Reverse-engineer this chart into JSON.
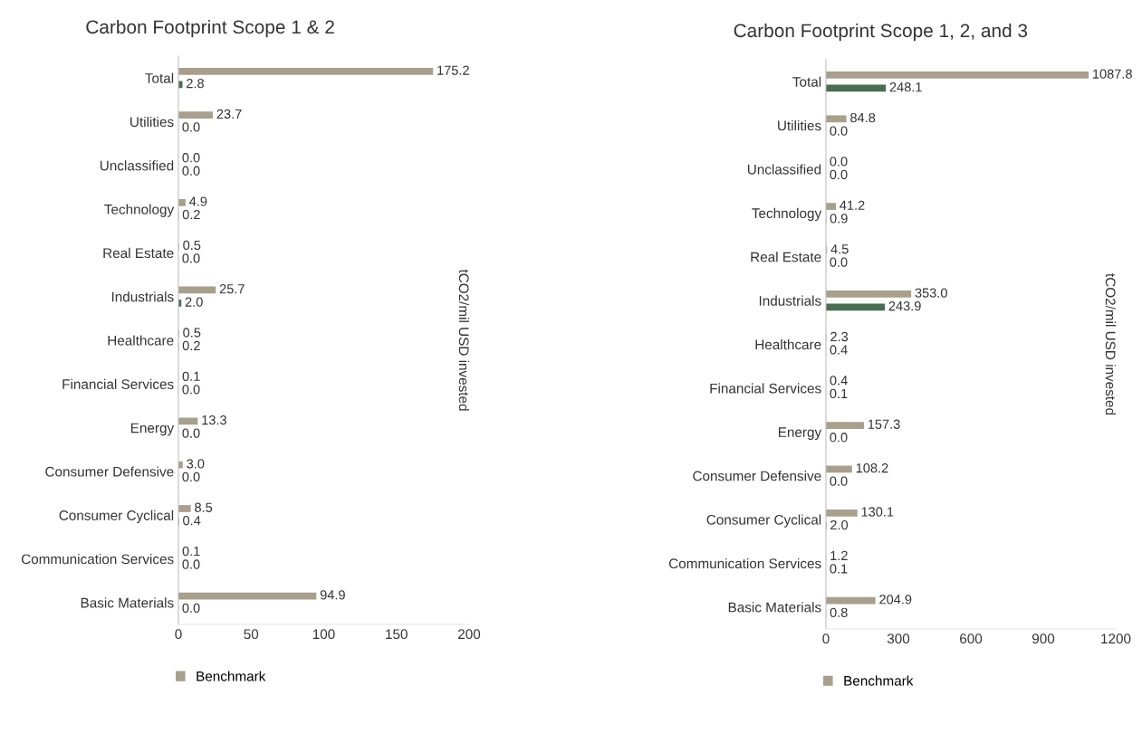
{
  "chart_data": [
    {
      "type": "bar",
      "orientation": "horizontal",
      "title": "Carbon Footprint Scope 1 & 2",
      "categories": [
        "Total",
        "Utilities",
        "Unclassified",
        "Technology",
        "Real Estate",
        "Industrials",
        "Healthcare",
        "Financial Services",
        "Energy",
        "Consumer Defensive",
        "Consumer Cyclical",
        "Communication Services",
        "Basic Materials"
      ],
      "series": [
        {
          "name": "Benchmark",
          "color": "#a89f8c",
          "values": [
            175.2,
            23.7,
            0.0,
            4.9,
            0.5,
            25.7,
            0.5,
            0.1,
            13.3,
            3.0,
            8.5,
            0.1,
            94.9
          ],
          "value_labels": [
            "175.2",
            "23.7",
            "0.0",
            "4.9",
            "0.5",
            "25.7",
            "0.5",
            "0.1",
            "13.3",
            "3.0",
            "8.5",
            "0.1",
            "94.9"
          ]
        },
        {
          "color": "#4a6e52",
          "values": [
            2.8,
            0.0,
            0.0,
            0.2,
            0.0,
            2.0,
            0.2,
            0.0,
            0.0,
            0.0,
            0.4,
            0.0,
            0.0
          ],
          "value_labels": [
            "2.8",
            "0.0",
            "0.0",
            "0.2",
            "0.0",
            "2.0",
            "0.2",
            "0.0",
            "0.0",
            "0.0",
            "0.4",
            "0.0",
            "0.0"
          ]
        }
      ],
      "xlim": [
        0,
        200
      ],
      "xticks": [
        0,
        50,
        100,
        150,
        200
      ],
      "grid": false,
      "legend": "bottom left",
      "annotations": [
        "tCO2/mil USD invested"
      ]
    },
    {
      "type": "bar",
      "orientation": "horizontal",
      "title": "Carbon Footprint Scope 1, 2, and 3",
      "categories": [
        "Total",
        "Utilities",
        "Unclassified",
        "Technology",
        "Real Estate",
        "Industrials",
        "Healthcare",
        "Financial Services",
        "Energy",
        "Consumer Defensive",
        "Consumer Cyclical",
        "Communication Services",
        "Basic Materials"
      ],
      "series": [
        {
          "name": "Benchmark",
          "color": "#a89f8c",
          "values": [
            1087.8,
            84.8,
            0.0,
            41.2,
            4.5,
            353.0,
            2.3,
            0.4,
            157.3,
            108.2,
            130.1,
            1.2,
            204.9
          ],
          "value_labels": [
            "1087.8",
            "84.8",
            "0.0",
            "41.2",
            "4.5",
            "353.0",
            "2.3",
            "0.4",
            "157.3",
            "108.2",
            "130.1",
            "1.2",
            "204.9"
          ]
        },
        {
          "color": "#4a6e52",
          "values": [
            248.1,
            0.0,
            0.0,
            0.9,
            0.0,
            243.9,
            0.4,
            0.1,
            0.0,
            0.0,
            2.0,
            0.1,
            0.8
          ],
          "value_labels": [
            "248.1",
            "0.0",
            "0.0",
            "0.9",
            "0.0",
            "243.9",
            "0.4",
            "0.1",
            "0.0",
            "0.0",
            "2.0",
            "0.1",
            "0.8"
          ]
        }
      ],
      "xlim": [
        0,
        1200
      ],
      "xticks": [
        0,
        300,
        600,
        900,
        1200
      ],
      "grid": false,
      "legend": "bottom left",
      "annotations": [
        "tCO2/mil USD invested"
      ]
    }
  ]
}
